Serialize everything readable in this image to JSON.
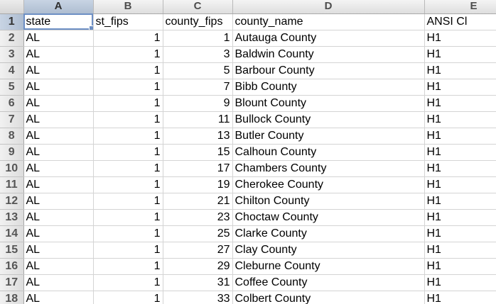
{
  "column_headers": [
    "A",
    "B",
    "C",
    "D",
    "E"
  ],
  "rows": [
    {
      "num": "1",
      "cells": [
        "state",
        "st_fips",
        "county_fips",
        "county_name",
        "ANSI Cl"
      ]
    },
    {
      "num": "2",
      "cells": [
        "AL",
        "1",
        "1",
        "Autauga County",
        "H1"
      ]
    },
    {
      "num": "3",
      "cells": [
        "AL",
        "1",
        "3",
        "Baldwin County",
        "H1"
      ]
    },
    {
      "num": "4",
      "cells": [
        "AL",
        "1",
        "5",
        "Barbour County",
        "H1"
      ]
    },
    {
      "num": "5",
      "cells": [
        "AL",
        "1",
        "7",
        "Bibb County",
        "H1"
      ]
    },
    {
      "num": "6",
      "cells": [
        "AL",
        "1",
        "9",
        "Blount County",
        "H1"
      ]
    },
    {
      "num": "7",
      "cells": [
        "AL",
        "1",
        "11",
        "Bullock County",
        "H1"
      ]
    },
    {
      "num": "8",
      "cells": [
        "AL",
        "1",
        "13",
        "Butler County",
        "H1"
      ]
    },
    {
      "num": "9",
      "cells": [
        "AL",
        "1",
        "15",
        "Calhoun County",
        "H1"
      ]
    },
    {
      "num": "10",
      "cells": [
        "AL",
        "1",
        "17",
        "Chambers County",
        "H1"
      ]
    },
    {
      "num": "11",
      "cells": [
        "AL",
        "1",
        "19",
        "Cherokee County",
        "H1"
      ]
    },
    {
      "num": "12",
      "cells": [
        "AL",
        "1",
        "21",
        "Chilton County",
        "H1"
      ]
    },
    {
      "num": "13",
      "cells": [
        "AL",
        "1",
        "23",
        "Choctaw County",
        "H1"
      ]
    },
    {
      "num": "14",
      "cells": [
        "AL",
        "1",
        "25",
        "Clarke County",
        "H1"
      ]
    },
    {
      "num": "15",
      "cells": [
        "AL",
        "1",
        "27",
        "Clay County",
        "H1"
      ]
    },
    {
      "num": "16",
      "cells": [
        "AL",
        "1",
        "29",
        "Cleburne County",
        "H1"
      ]
    },
    {
      "num": "17",
      "cells": [
        "AL",
        "1",
        "31",
        "Coffee County",
        "H1"
      ]
    },
    {
      "num": "18",
      "cells": [
        "AL",
        "1",
        "33",
        "Colbert County",
        "H1"
      ]
    }
  ],
  "selected_cell": "A1",
  "colors": {
    "selection": "#6d8fc4",
    "header_active": "#aebdd1",
    "gridline": "#d4d4d4"
  }
}
